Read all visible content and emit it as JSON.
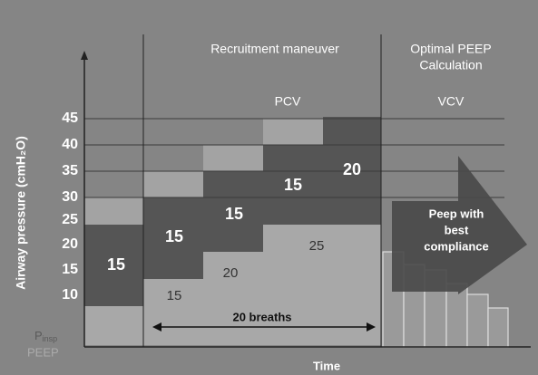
{
  "header": {
    "left": "Recruitment maneuver",
    "right": [
      "Optimal PEEP",
      "Calculation"
    ]
  },
  "modes": {
    "left": "PCV",
    "right": "VCV"
  },
  "y_axis": {
    "label": "Airway pressure (cmH₂O)",
    "ticks": [
      "45",
      "40",
      "35",
      "30",
      "25",
      "20",
      "15",
      "10"
    ]
  },
  "steps": [
    {
      "pinsp": "15",
      "peep": null
    },
    {
      "pinsp": "15",
      "peep": "15"
    },
    {
      "pinsp": "15",
      "peep": "20"
    },
    {
      "pinsp": "15",
      "peep": "25"
    },
    {
      "pinsp": "20",
      "peep": null
    }
  ],
  "breaths": "20 breaths",
  "arrow": [
    "Peep with",
    "best",
    "compliance"
  ],
  "legend": {
    "pinsp": {
      "symbol": "P",
      "subscript": "insp"
    },
    "peep": "PEEP"
  },
  "x_axis": {
    "label": "Time"
  }
}
